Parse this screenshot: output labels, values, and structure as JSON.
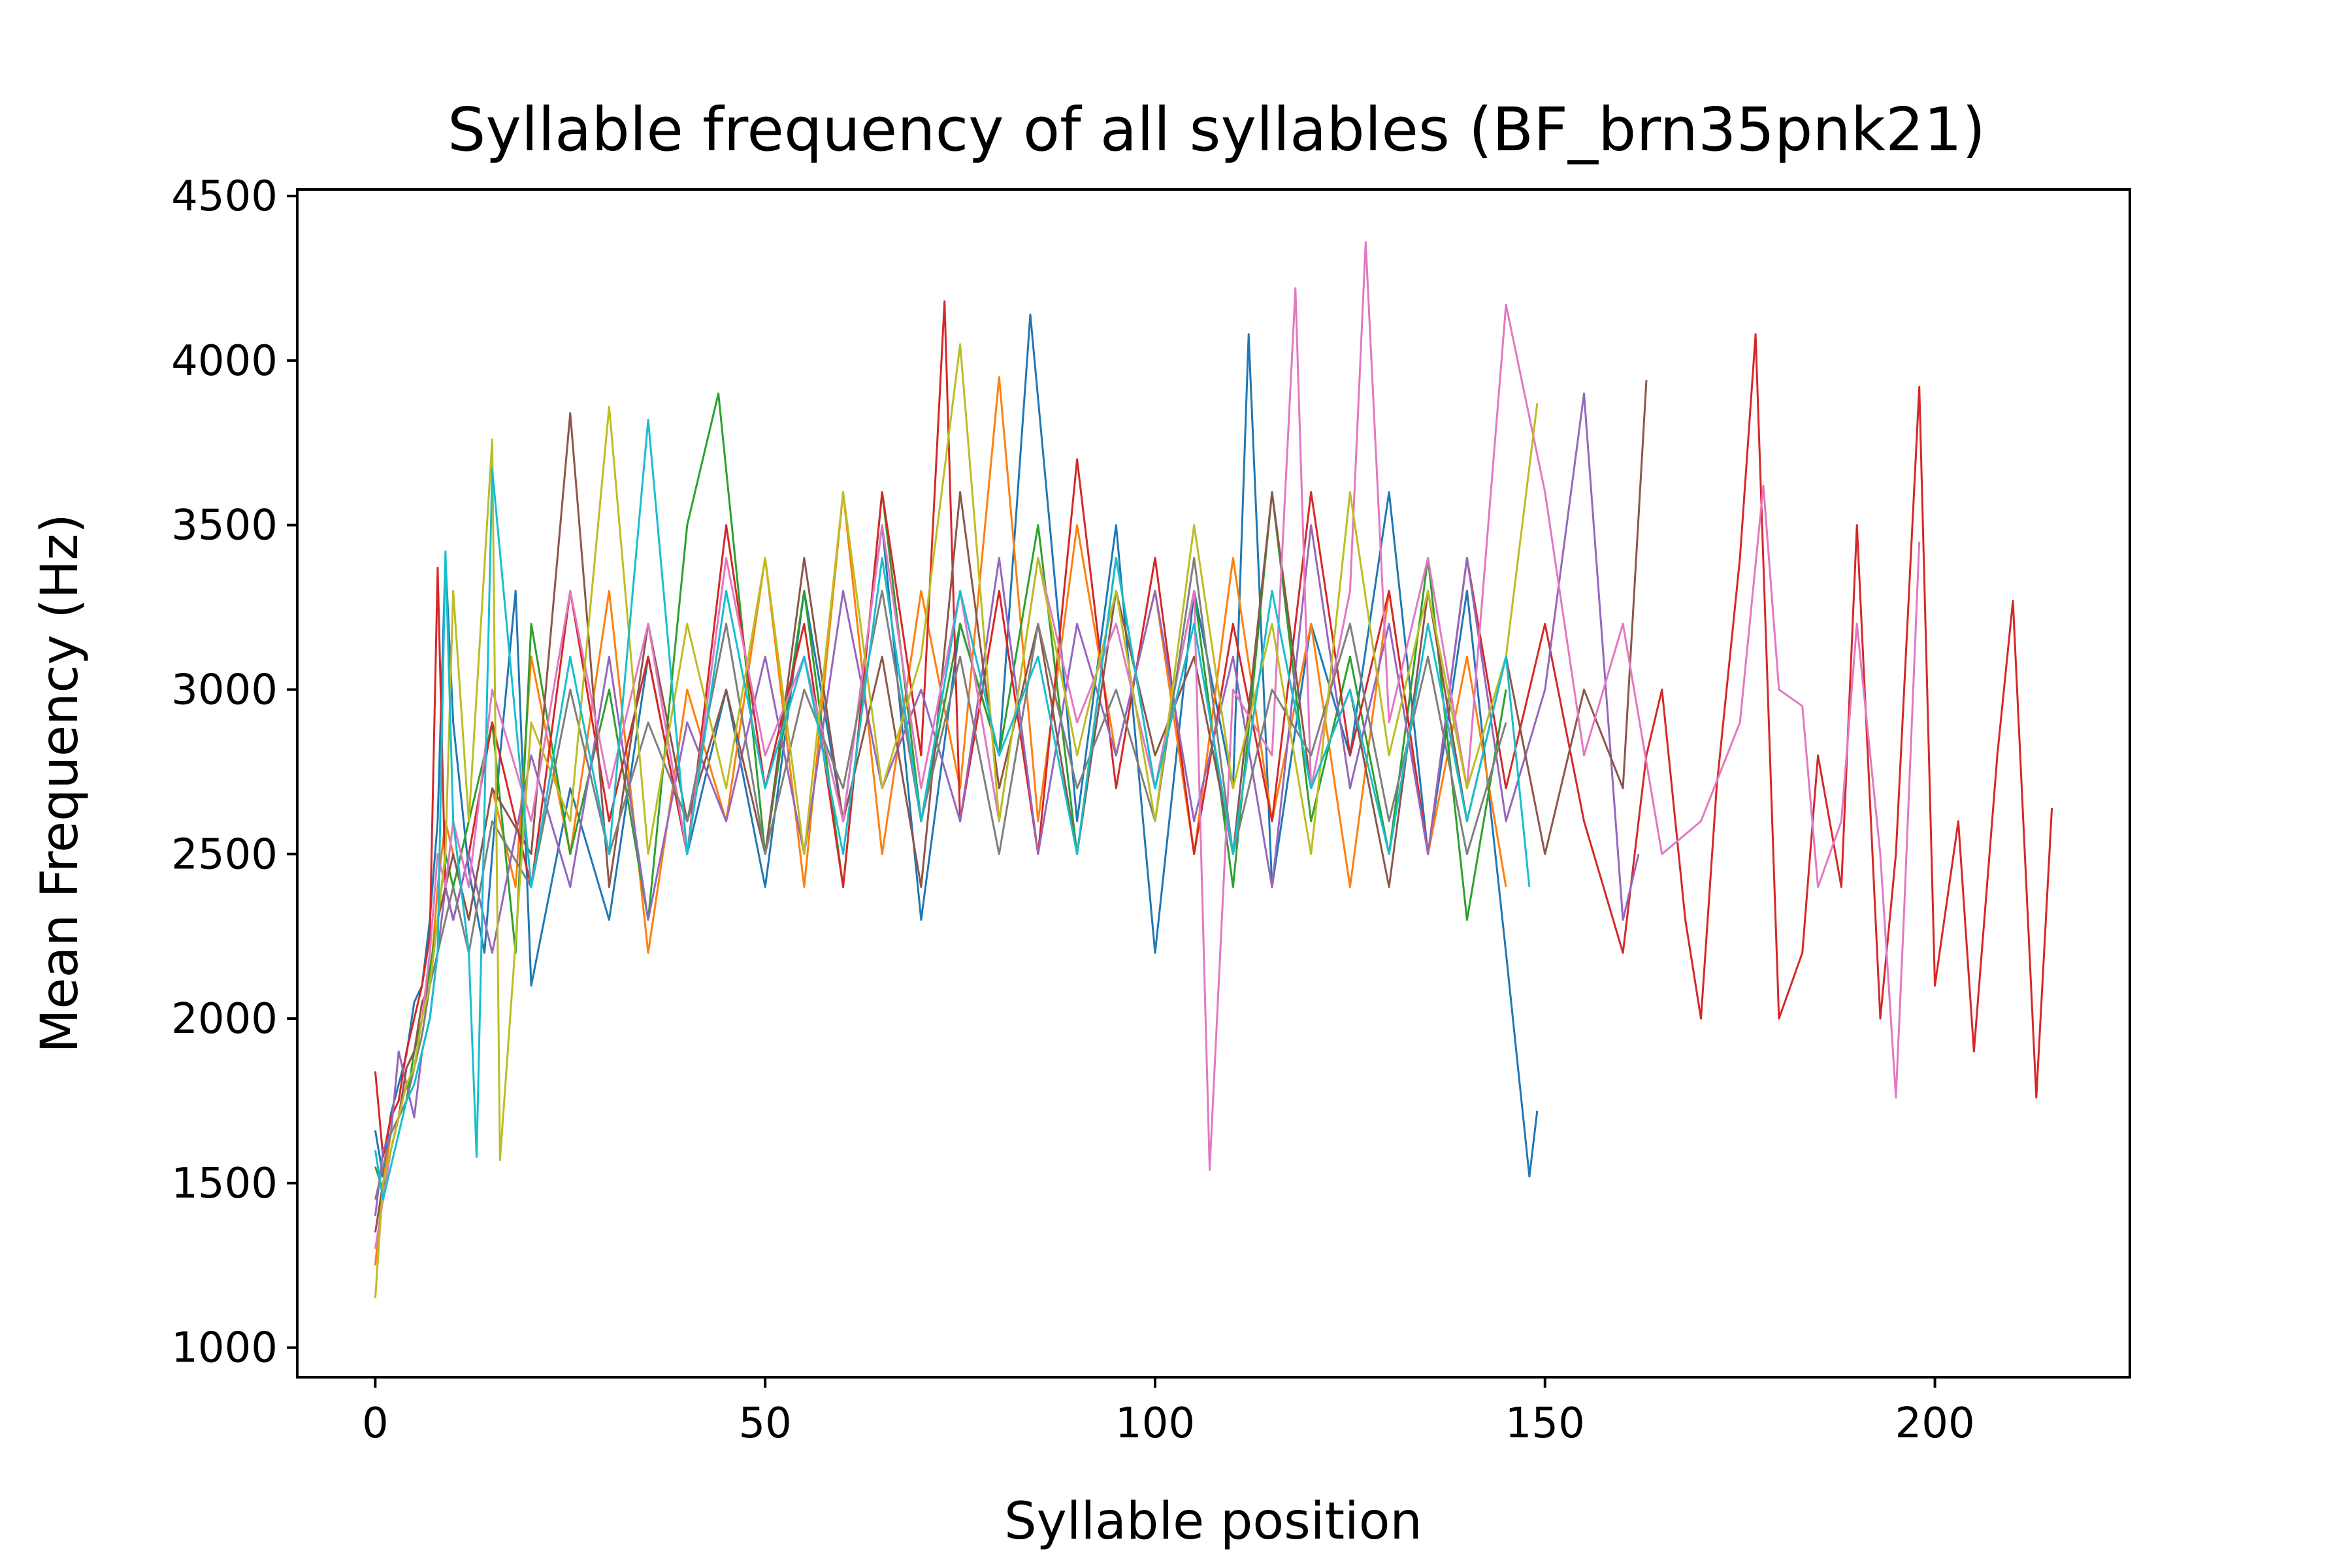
{
  "chart_data": {
    "type": "line",
    "title": "Syllable frequency of all syllables (BF_brn35pnk21)",
    "xlabel": "Syllable position",
    "ylabel": "Mean Frequency (Hz)",
    "xlim": [
      -10,
      225
    ],
    "ylim": [
      910,
      4520
    ],
    "xticks": [
      0,
      50,
      100,
      150,
      200
    ],
    "yticks": [
      1000,
      1500,
      2000,
      2500,
      3000,
      3500,
      4000,
      4500
    ],
    "grid": false,
    "legend": "none",
    "palette": [
      "#1f77b4",
      "#ff7f0e",
      "#2ca02c",
      "#d62728",
      "#9467bd",
      "#8c564b",
      "#e377c2",
      "#7f7f7f",
      "#bcbd22",
      "#17becf"
    ],
    "series_summary": "Many overlaid song renditions; each line is one rendition's mean frequency per syllable position.",
    "series": [
      {
        "color": "#1f77b4",
        "x": [
          0,
          1,
          2,
          3,
          4,
          5,
          6,
          7,
          8,
          9,
          10,
          12,
          14,
          16,
          18,
          20,
          25,
          30,
          35,
          40,
          45,
          50,
          55,
          60,
          65,
          70,
          75,
          80,
          84,
          90,
          95,
          100,
          105,
          110,
          112,
          115,
          120,
          125,
          130,
          135,
          140,
          145,
          148,
          149
        ],
        "values": [
          1660,
          1520,
          1710,
          1800,
          1890,
          2050,
          2100,
          2300,
          2600,
          3400,
          2900,
          2450,
          2200,
          2800,
          3300,
          2100,
          2700,
          2300,
          3100,
          2500,
          3000,
          2400,
          3300,
          2600,
          3500,
          2300,
          3200,
          2800,
          4140,
          2600,
          3500,
          2200,
          3300,
          2700,
          4080,
          2400,
          3200,
          2800,
          3600,
          2500,
          3300,
          2200,
          1520,
          1720
        ]
      },
      {
        "color": "#ff7f0e",
        "x": [
          0,
          1,
          2,
          3,
          4,
          5,
          6,
          7,
          8,
          9,
          10,
          12,
          15,
          18,
          20,
          25,
          30,
          35,
          40,
          45,
          50,
          55,
          60,
          65,
          70,
          75,
          80,
          85,
          90,
          95,
          100,
          105,
          110,
          115,
          120,
          125,
          130,
          135,
          140,
          145
        ],
        "values": [
          1250,
          1500,
          1650,
          1700,
          1850,
          1900,
          2000,
          2100,
          2400,
          2600,
          2500,
          2300,
          2700,
          2400,
          3100,
          2500,
          3300,
          2200,
          3000,
          2600,
          3400,
          2400,
          3600,
          2500,
          3300,
          2700,
          3950,
          2600,
          3500,
          2800,
          3300,
          2500,
          3400,
          2600,
          3200,
          2400,
          3300,
          2500,
          3100,
          2400
        ]
      },
      {
        "color": "#2ca02c",
        "x": [
          0,
          1,
          2,
          3,
          4,
          5,
          6,
          7,
          8,
          9,
          10,
          12,
          15,
          18,
          20,
          25,
          30,
          35,
          40,
          44,
          50,
          55,
          60,
          65,
          70,
          75,
          80,
          85,
          90,
          95,
          100,
          105,
          110,
          115,
          120,
          125,
          130,
          135,
          140,
          145
        ],
        "values": [
          1550,
          1480,
          1600,
          1700,
          1750,
          1900,
          2000,
          2150,
          2300,
          2500,
          2400,
          2600,
          2900,
          2200,
          3200,
          2500,
          3000,
          2300,
          3500,
          3900,
          2500,
          3300,
          2400,
          3600,
          2600,
          3200,
          2800,
          3500,
          2500,
          3400,
          2700,
          3300,
          2400,
          3600,
          2600,
          3100,
          2500,
          3400,
          2300,
          3000
        ]
      },
      {
        "color": "#d62728",
        "x": [
          0,
          1,
          2,
          3,
          4,
          5,
          6,
          7,
          8,
          9,
          10,
          12,
          15,
          20,
          25,
          30,
          35,
          40,
          45,
          50,
          55,
          60,
          65,
          70,
          73,
          75,
          80,
          85,
          90,
          95,
          100,
          105,
          110,
          115,
          120,
          125,
          130,
          135,
          140,
          145,
          150,
          155,
          160,
          163,
          165,
          168,
          170,
          172,
          175,
          177,
          180,
          183,
          185,
          188,
          190,
          193,
          195,
          198,
          200,
          203,
          205,
          208,
          210,
          213,
          215
        ],
        "values": [
          1840,
          1580,
          1700,
          1750,
          1900,
          2000,
          2100,
          2250,
          3370,
          2400,
          2300,
          2500,
          2900,
          2400,
          3300,
          2600,
          3100,
          2500,
          3500,
          2700,
          3200,
          2400,
          3600,
          2800,
          4180,
          2600,
          3300,
          2500,
          3700,
          2700,
          3400,
          2500,
          3200,
          2600,
          3600,
          2800,
          3300,
          2500,
          3400,
          2700,
          3200,
          2600,
          2200,
          2800,
          3000,
          2300,
          2000,
          2700,
          3400,
          4080,
          2000,
          2200,
          2800,
          2400,
          3500,
          2000,
          2500,
          3920,
          2100,
          2600,
          1900,
          2800,
          3270,
          1760,
          2640
        ]
      },
      {
        "color": "#9467bd",
        "x": [
          0,
          1,
          2,
          3,
          4,
          5,
          6,
          7,
          8,
          9,
          10,
          12,
          15,
          20,
          25,
          30,
          35,
          40,
          45,
          50,
          55,
          60,
          65,
          70,
          75,
          80,
          85,
          90,
          95,
          100,
          105,
          110,
          115,
          120,
          125,
          130,
          135,
          140,
          145,
          150,
          155,
          160,
          162
        ],
        "values": [
          1400,
          1600,
          1650,
          1900,
          1800,
          1700,
          1900,
          2000,
          2200,
          2400,
          2300,
          2500,
          2200,
          2800,
          2400,
          3100,
          2300,
          2900,
          2600,
          3100,
          2500,
          3300,
          2700,
          3000,
          2600,
          3400,
          2500,
          3200,
          2800,
          3300,
          2600,
          3100,
          2400,
          3500,
          2700,
          3200,
          2500,
          3400,
          2600,
          3000,
          3900,
          2300,
          2500
        ]
      },
      {
        "color": "#8c564b",
        "x": [
          0,
          1,
          2,
          3,
          4,
          5,
          6,
          7,
          8,
          9,
          10,
          12,
          15,
          20,
          25,
          30,
          35,
          40,
          45,
          50,
          55,
          60,
          65,
          70,
          75,
          80,
          85,
          90,
          95,
          100,
          105,
          110,
          115,
          120,
          125,
          130,
          135,
          140,
          145,
          150,
          155,
          160,
          163
        ],
        "values": [
          1350,
          1500,
          1600,
          1700,
          1850,
          1900,
          2050,
          2100,
          2300,
          2400,
          2500,
          2300,
          2700,
          2500,
          3840,
          2400,
          3200,
          2600,
          3000,
          2500,
          3400,
          2600,
          3100,
          2400,
          3600,
          2700,
          3200,
          2500,
          3300,
          2800,
          3100,
          2500,
          3600,
          2700,
          3000,
          2400,
          3300,
          2600,
          3100,
          2500,
          3000,
          2700,
          3940
        ]
      },
      {
        "color": "#e377c2",
        "x": [
          0,
          1,
          2,
          3,
          4,
          5,
          6,
          7,
          8,
          9,
          10,
          12,
          15,
          20,
          25,
          30,
          35,
          40,
          45,
          50,
          55,
          60,
          65,
          70,
          75,
          80,
          85,
          90,
          95,
          100,
          105,
          107,
          110,
          115,
          118,
          120,
          125,
          127,
          130,
          135,
          140,
          145,
          150,
          155,
          160,
          165,
          170,
          175,
          178,
          180,
          183,
          185,
          188,
          190,
          193,
          195,
          196,
          198
        ],
        "values": [
          1300,
          1450,
          1600,
          1700,
          1800,
          1850,
          2000,
          2200,
          2500,
          2400,
          2600,
          2400,
          3000,
          2600,
          3300,
          2700,
          3200,
          2500,
          3400,
          2800,
          3100,
          2600,
          3500,
          2700,
          3300,
          2600,
          3400,
          2900,
          3200,
          2700,
          3300,
          1540,
          3000,
          2800,
          4220,
          2700,
          3300,
          4360,
          2900,
          3400,
          2700,
          4170,
          3600,
          2800,
          3200,
          2500,
          2600,
          2900,
          3620,
          3000,
          2950,
          2400,
          2600,
          3200,
          2500,
          1760,
          2300,
          3450
        ]
      },
      {
        "color": "#7f7f7f",
        "x": [
          0,
          1,
          2,
          3,
          4,
          5,
          6,
          7,
          8,
          9,
          10,
          12,
          15,
          20,
          25,
          30,
          35,
          40,
          45,
          50,
          55,
          60,
          65,
          70,
          75,
          80,
          85,
          90,
          95,
          100,
          105,
          110,
          115,
          120,
          125,
          130,
          135,
          140,
          145
        ],
        "values": [
          1450,
          1550,
          1650,
          1700,
          1750,
          1850,
          1950,
          2100,
          2200,
          2300,
          2400,
          2200,
          2600,
          2400,
          3000,
          2500,
          2900,
          2600,
          3200,
          2500,
          3000,
          2700,
          3300,
          2600,
          3100,
          2500,
          3200,
          2700,
          3000,
          2600,
          3400,
          2500,
          3000,
          2800,
          3200,
          2600,
          3100,
          2500,
          2900
        ]
      },
      {
        "color": "#bcbd22",
        "x": [
          0,
          1,
          2,
          3,
          4,
          5,
          6,
          7,
          8,
          9,
          10,
          12,
          15,
          16,
          20,
          25,
          30,
          35,
          40,
          45,
          50,
          55,
          60,
          65,
          70,
          75,
          80,
          85,
          90,
          95,
          100,
          105,
          110,
          115,
          120,
          125,
          130,
          135,
          140,
          145,
          149
        ],
        "values": [
          1150,
          1500,
          1600,
          1700,
          1800,
          1850,
          2000,
          2100,
          2300,
          2500,
          3300,
          2600,
          3760,
          1570,
          2900,
          2600,
          3860,
          2500,
          3200,
          2700,
          3400,
          2500,
          3600,
          2700,
          3100,
          4050,
          2600,
          3400,
          2800,
          3300,
          2600,
          3500,
          2700,
          3200,
          2500,
          3600,
          2800,
          3300,
          2700,
          3100,
          3870
        ]
      },
      {
        "color": "#17becf",
        "x": [
          0,
          1,
          2,
          3,
          4,
          5,
          6,
          7,
          8,
          9,
          10,
          12,
          13,
          15,
          20,
          25,
          30,
          35,
          40,
          45,
          50,
          55,
          60,
          65,
          70,
          75,
          80,
          85,
          90,
          95,
          100,
          105,
          110,
          115,
          120,
          125,
          130,
          135,
          140,
          145,
          148
        ],
        "values": [
          1600,
          1450,
          1550,
          1650,
          1750,
          1800,
          1900,
          2000,
          2200,
          3420,
          2600,
          2200,
          1580,
          3670,
          2400,
          3100,
          2500,
          3820,
          2500,
          3300,
          2700,
          3100,
          2500,
          3400,
          2600,
          3300,
          2800,
          3100,
          2500,
          3400,
          2700,
          3200,
          2500,
          3300,
          2700,
          3000,
          2500,
          3200,
          2600,
          3100,
          2400
        ]
      }
    ]
  }
}
